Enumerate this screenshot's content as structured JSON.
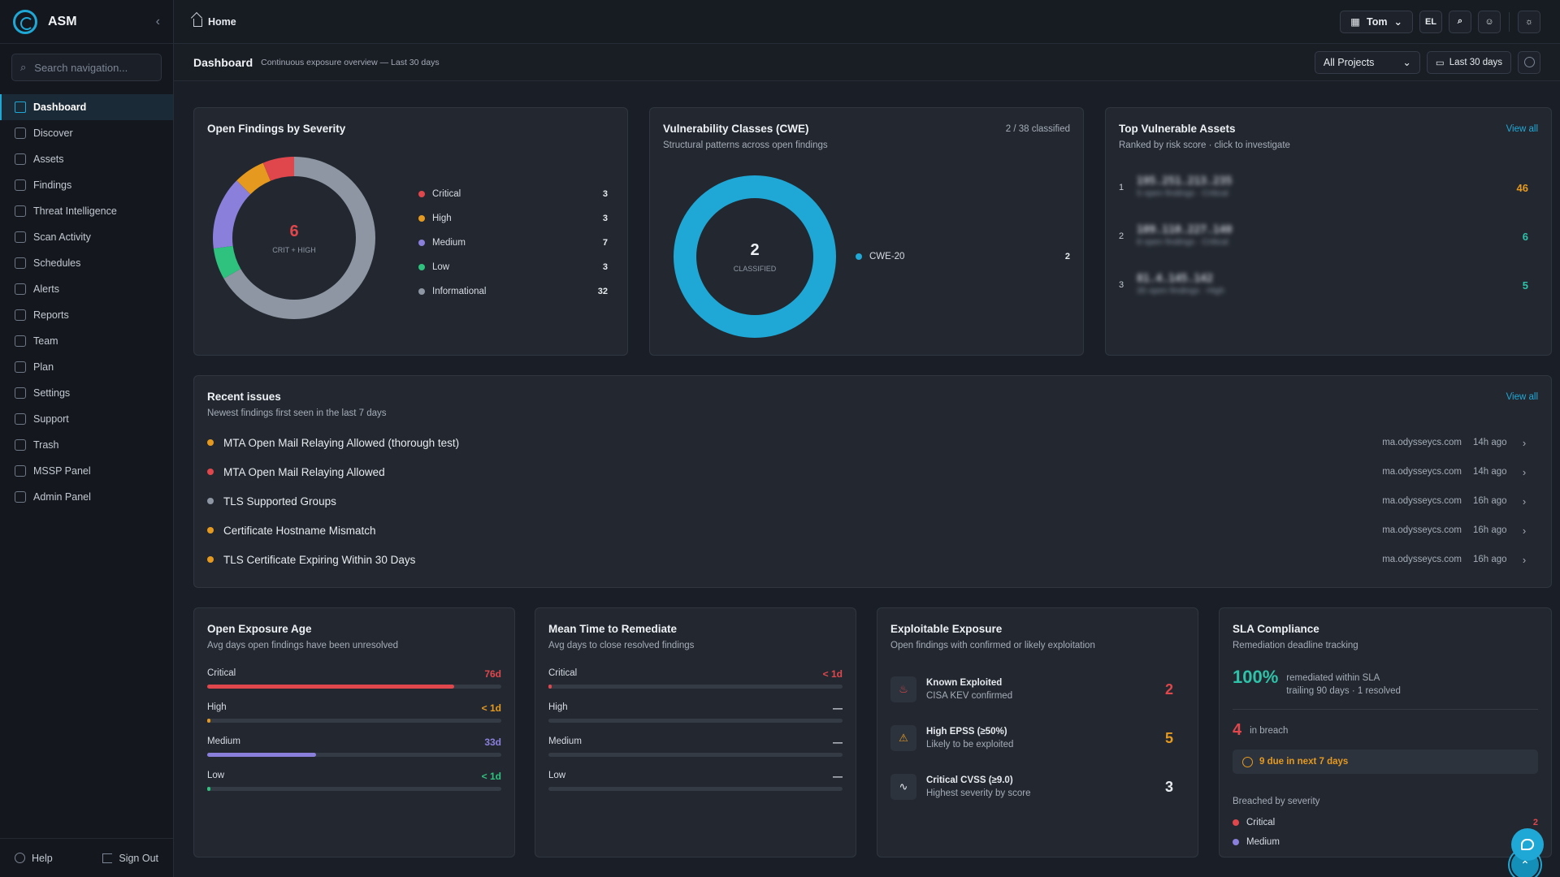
{
  "app": {
    "name": "ASM"
  },
  "sidebar": {
    "search_placeholder": "Search navigation...",
    "items": [
      {
        "label": "Dashboard",
        "icon": "grid-icon"
      },
      {
        "label": "Discover",
        "icon": "compass-icon"
      },
      {
        "label": "Assets",
        "icon": "server-icon"
      },
      {
        "label": "Findings",
        "icon": "bug-icon"
      },
      {
        "label": "Threat Intelligence",
        "icon": "shield-icon"
      },
      {
        "label": "Scan Activity",
        "icon": "activity-icon"
      },
      {
        "label": "Schedules",
        "icon": "calendar-icon"
      },
      {
        "label": "Alerts",
        "icon": "bell-icon"
      },
      {
        "label": "Reports",
        "icon": "file-icon"
      },
      {
        "label": "Team",
        "icon": "users-icon"
      },
      {
        "label": "Plan",
        "icon": "credit-card-icon"
      },
      {
        "label": "Settings",
        "icon": "gear-icon"
      },
      {
        "label": "Support",
        "icon": "lifebuoy-icon"
      },
      {
        "label": "Trash",
        "icon": "trash-icon"
      },
      {
        "label": "MSSP Panel",
        "icon": "building-icon"
      },
      {
        "label": "Admin Panel",
        "icon": "shield-check-icon"
      }
    ],
    "help_label": "Help",
    "signout_label": "Sign Out"
  },
  "topbar": {
    "home_label": "Home",
    "user_name": "Tom",
    "user_initials": "EL"
  },
  "subheader": {
    "title": "Dashboard",
    "subtitle": "Continuous exposure overview — Last 30 days",
    "project_select": "All Projects",
    "range_button": "Last 30 days"
  },
  "severity_card": {
    "title": "Open Findings by Severity",
    "center_value": "6",
    "center_label": "CRIT + HIGH",
    "items": [
      {
        "label": "Critical",
        "value": 3,
        "color": "#e0474c"
      },
      {
        "label": "High",
        "value": 3,
        "color": "#e59a1f"
      },
      {
        "label": "Medium",
        "value": 7,
        "color": "#8b7fdc"
      },
      {
        "label": "Low",
        "value": 3,
        "color": "#2ec27e"
      },
      {
        "label": "Informational",
        "value": 32,
        "color": "#8e96a3"
      }
    ]
  },
  "cwe_card": {
    "title": "Vulnerability Classes (CWE)",
    "meta": "2 / 38 classified",
    "subtitle": "Structural patterns across open findings",
    "center_value": "2",
    "center_label": "CLASSIFIED",
    "items": [
      {
        "label": "CWE-20",
        "value": 2,
        "color": "#1fa8d6"
      }
    ]
  },
  "assets_card": {
    "title": "Top Vulnerable Assets",
    "link": "View all",
    "subtitle": "Ranked by risk score · click to investigate",
    "items": [
      {
        "rank": "1",
        "ip": "195.251.213.235",
        "desc": "5 open findings · Critical",
        "score": "46",
        "color": "#e59a1f"
      },
      {
        "rank": "2",
        "ip": "109.110.227.140",
        "desc": "8 open findings · Critical",
        "score": "6",
        "color": "#2ec2a8"
      },
      {
        "rank": "3",
        "ip": "81.4.145.142",
        "desc": "35 open findings · High",
        "score": "5",
        "color": "#2ec2a8"
      }
    ]
  },
  "recent_card": {
    "title": "Recent issues",
    "subtitle": "Newest findings first seen in the last 7 days",
    "link": "View all",
    "items": [
      {
        "title": "MTA Open Mail Relaying Allowed (thorough test)",
        "host": "ma.odysseycs.com",
        "time": "14h ago",
        "color": "#e59a1f"
      },
      {
        "title": "MTA Open Mail Relaying Allowed",
        "host": "ma.odysseycs.com",
        "time": "14h ago",
        "color": "#e0474c"
      },
      {
        "title": "TLS Supported Groups",
        "host": "ma.odysseycs.com",
        "time": "16h ago",
        "color": "#8e96a3"
      },
      {
        "title": "Certificate Hostname Mismatch",
        "host": "ma.odysseycs.com",
        "time": "16h ago",
        "color": "#e59a1f"
      },
      {
        "title": "TLS Certificate Expiring Within 30 Days",
        "host": "ma.odysseycs.com",
        "time": "16h ago",
        "color": "#e59a1f"
      }
    ]
  },
  "exposure_age_card": {
    "title": "Open Exposure Age",
    "subtitle": "Avg days open findings have been unresolved",
    "items": [
      {
        "label": "Critical",
        "value": "76d",
        "fill": 0.84,
        "color": "#e0474c"
      },
      {
        "label": "High",
        "value": "< 1d",
        "fill": 0.01,
        "color": "#e59a1f"
      },
      {
        "label": "Medium",
        "value": "33d",
        "fill": 0.37,
        "color": "#8b7fdc"
      },
      {
        "label": "Low",
        "value": "< 1d",
        "fill": 0.01,
        "color": "#2ec27e"
      }
    ]
  },
  "mttr_card": {
    "title": "Mean Time to Remediate",
    "subtitle": "Avg days to close resolved findings",
    "items": [
      {
        "label": "Critical",
        "value": "< 1d",
        "fill": 0.01,
        "color": "#e0474c"
      },
      {
        "label": "High",
        "value": "—",
        "fill": 0,
        "color": "#d7dce3"
      },
      {
        "label": "Medium",
        "value": "—",
        "fill": 0,
        "color": "#d7dce3"
      },
      {
        "label": "Low",
        "value": "—",
        "fill": 0,
        "color": "#d7dce3"
      }
    ]
  },
  "exploit_card": {
    "title": "Exploitable Exposure",
    "subtitle": "Open findings with confirmed or likely exploitation",
    "items": [
      {
        "name": "Known Exploited",
        "desc": "CISA KEV confirmed",
        "value": "2",
        "color": "#e0474c",
        "icon": "flame-icon"
      },
      {
        "name": "High EPSS (≥50%)",
        "desc": "Likely to be exploited",
        "value": "5",
        "color": "#e59a1f",
        "icon": "warning-icon"
      },
      {
        "name": "Critical CVSS (≥9.0)",
        "desc": "Highest severity by score",
        "value": "3",
        "color": "#e7eaef",
        "icon": "pulse-icon"
      }
    ]
  },
  "sla_card": {
    "title": "SLA Compliance",
    "subtitle": "Remediation deadline tracking",
    "percent": "100%",
    "percent_label": "remediated within SLA",
    "percent_sub": "trailing 90 days · 1 resolved",
    "breach_value": "4",
    "breach_label": "in breach",
    "due_label": "9 due in next 7 days",
    "breakdown_title": "Breached by severity",
    "breakdown": [
      {
        "label": "Critical",
        "value": "2",
        "color": "#e0474c"
      },
      {
        "label": "Medium",
        "value": "",
        "color": "#8b7fdc"
      }
    ]
  }
}
